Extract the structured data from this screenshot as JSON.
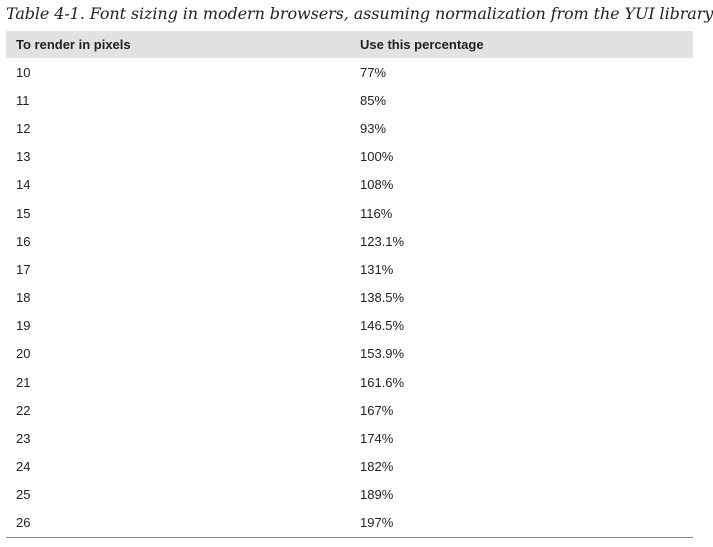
{
  "caption": "Table 4-1. Font sizing in modern browsers, assuming normalization from the YUI library",
  "table": {
    "headers": [
      "To render in pixels",
      "Use this percentage"
    ],
    "rows": [
      [
        "10",
        "77%"
      ],
      [
        "11",
        "85%"
      ],
      [
        "12",
        "93%"
      ],
      [
        "13",
        "100%"
      ],
      [
        "14",
        "108%"
      ],
      [
        "15",
        "116%"
      ],
      [
        "16",
        "123.1%"
      ],
      [
        "17",
        "131%"
      ],
      [
        "18",
        "138.5%"
      ],
      [
        "19",
        "146.5%"
      ],
      [
        "20",
        "153.9%"
      ],
      [
        "21",
        "161.6%"
      ],
      [
        "22",
        "167%"
      ],
      [
        "23",
        "174%"
      ],
      [
        "24",
        "182%"
      ],
      [
        "25",
        "189%"
      ],
      [
        "26",
        "197%"
      ]
    ]
  }
}
